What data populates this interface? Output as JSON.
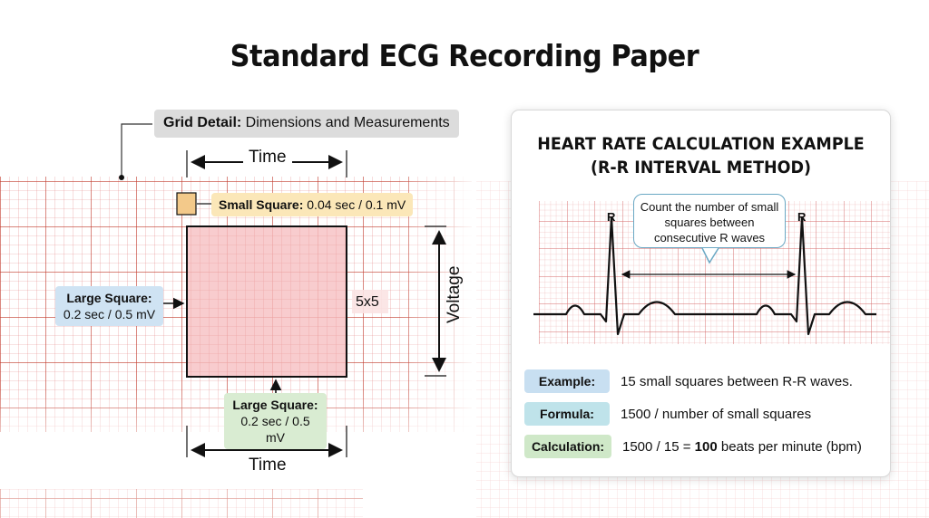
{
  "title": "Standard ECG Recording Paper",
  "grid_detail": {
    "label_bold": "Grid Detail:",
    "label_rest": " Dimensions and Measurements",
    "time_top": "Time",
    "time_bottom": "Time",
    "voltage": "Voltage",
    "five_by_five": "5x5",
    "small_square_bold": "Small Square:",
    "small_square_rest": " 0.04 sec / 0.1 mV",
    "large_square_left_title": "Large Square:",
    "large_square_left_value": "0.2 sec / 0.5 mV",
    "large_square_bottom_title": "Large Square:",
    "large_square_bottom_value": "0.2 sec / 0.5 mV"
  },
  "card": {
    "title_line1": "HEART RATE CALCULATION EXAMPLE",
    "title_line2": "(R-R INTERVAL METHOD)",
    "bubble": "Count the number of small squares between consecutive R waves",
    "r_left": "R",
    "r_right": "R",
    "example_tag": "Example:",
    "example_text": "15 small squares between R-R waves.",
    "formula_tag": "Formula:",
    "formula_text": "1500 / number of small squares",
    "calc_tag": "Calculation:",
    "calc_text_pre": "1500 / 15 = ",
    "calc_text_bold": "100",
    "calc_text_post": " beats per minute (bpm)"
  },
  "colors": {
    "grid_line": "#c0392b",
    "grid_fill": "#f7c9cb",
    "small_square": "#f3c98a",
    "ecg_trace": "#111111"
  }
}
